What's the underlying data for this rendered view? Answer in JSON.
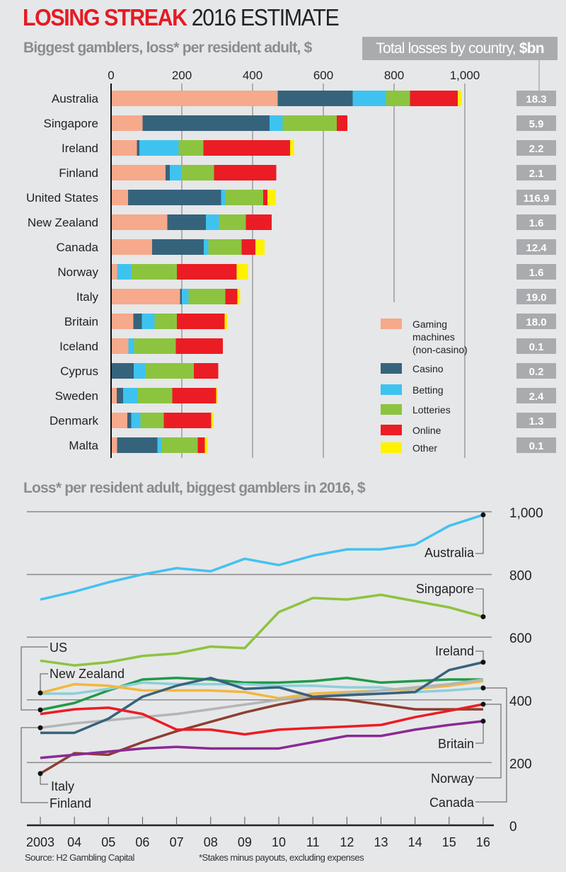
{
  "header": {
    "title_bold": "LOSING STREAK",
    "title_rest": "2016 ESTIMATE",
    "subtitle": "Biggest gamblers, loss* per resident adult, $",
    "totals_header": "Total losses by country,",
    "totals_unit": "$bn"
  },
  "footer": {
    "source": "Source: H2 Gambling Capital",
    "note": "*Stakes minus payouts, excluding expenses"
  },
  "colors": {
    "gaming": "#f6a98b",
    "casino": "#36637c",
    "betting": "#3ec3f0",
    "lotteries": "#8cc43f",
    "online": "#ec1c24",
    "other": "#fff200"
  },
  "chart_data": [
    {
      "type": "bar",
      "stacked": true,
      "orientation": "horizontal",
      "title": "Biggest gamblers, loss* per resident adult, $",
      "xlim": [
        0,
        1000
      ],
      "x_ticks": [
        "0",
        "200",
        "400",
        "600",
        "800",
        "1,000"
      ],
      "x_tick_values": [
        0,
        200,
        400,
        600,
        800,
        1000
      ],
      "legend_position": "bottom-right",
      "categories": [
        "Australia",
        "Singapore",
        "Ireland",
        "Finland",
        "United States",
        "New Zealand",
        "Canada",
        "Norway",
        "Italy",
        "Britain",
        "Iceland",
        "Cyprus",
        "Sweden",
        "Denmark",
        "Malta"
      ],
      "series": [
        {
          "key": "gaming",
          "name": "Gaming machines (non-casino)",
          "values": [
            471,
            89,
            73,
            154,
            48,
            159,
            116,
            17,
            195,
            63,
            49,
            0,
            16,
            46,
            17
          ]
        },
        {
          "key": "casino",
          "name": "Casino",
          "values": [
            212,
            359,
            7,
            12,
            263,
            109,
            146,
            0,
            5,
            24,
            0,
            64,
            18,
            11,
            114
          ]
        },
        {
          "key": "betting",
          "name": "Betting",
          "values": [
            94,
            37,
            111,
            32,
            12,
            37,
            13,
            40,
            19,
            36,
            16,
            33,
            41,
            26,
            11
          ]
        },
        {
          "key": "lotteries",
          "name": "Lotteries",
          "values": [
            68,
            153,
            70,
            93,
            107,
            76,
            94,
            129,
            104,
            63,
            118,
            137,
            98,
            66,
            103
          ]
        },
        {
          "key": "online",
          "name": "Online",
          "values": [
            135,
            30,
            245,
            176,
            12,
            73,
            39,
            169,
            34,
            135,
            133,
            69,
            124,
            134,
            20
          ]
        },
        {
          "key": "other",
          "name": "Other",
          "values": [
            11,
            0,
            11,
            0,
            24,
            0,
            26,
            32,
            8,
            8,
            0,
            0,
            4,
            7,
            9
          ]
        }
      ],
      "totals_bn": [
        "18.3",
        "5.9",
        "2.2",
        "2.1",
        "116.9",
        "1.6",
        "12.4",
        "1.6",
        "19.0",
        "18.0",
        "0.1",
        "0.2",
        "2.4",
        "1.3",
        "0.1"
      ]
    },
    {
      "type": "line",
      "title": "Loss* per resident adult, biggest gamblers in 2016, $",
      "x": [
        "2003",
        "04",
        "05",
        "06",
        "07",
        "08",
        "09",
        "10",
        "11",
        "12",
        "13",
        "14",
        "15",
        "16"
      ],
      "ylim": [
        0,
        1000
      ],
      "y_ticks": [
        "0",
        "200",
        "400",
        "600",
        "800",
        "1,000"
      ],
      "y_tick_values": [
        0,
        200,
        400,
        600,
        800,
        1000
      ],
      "grid": true,
      "series": [
        {
          "name": "Australia",
          "color": "#45c1ef",
          "values": [
            720,
            745,
            775,
            800,
            820,
            810,
            850,
            830,
            860,
            880,
            880,
            895,
            955,
            990
          ]
        },
        {
          "name": "Singapore",
          "color": "#8cc43f",
          "values": [
            525,
            510,
            520,
            540,
            548,
            570,
            565,
            680,
            725,
            720,
            735,
            715,
            695,
            665
          ]
        },
        {
          "name": "US",
          "color": "#1f9a48",
          "values": [
            368,
            390,
            430,
            465,
            470,
            465,
            455,
            455,
            460,
            470,
            455,
            460,
            465,
            465
          ]
        },
        {
          "name": "Canada",
          "color": "#8ccfd8",
          "values": [
            420,
            420,
            435,
            455,
            450,
            450,
            450,
            445,
            445,
            440,
            440,
            425,
            430,
            438
          ]
        },
        {
          "name": "New Zealand",
          "color": "#f2b73c",
          "values": [
            422,
            450,
            445,
            430,
            430,
            430,
            425,
            405,
            420,
            425,
            430,
            435,
            445,
            460
          ]
        },
        {
          "name": "Finland",
          "color": "#b3b5b8",
          "values": [
            311,
            325,
            335,
            345,
            355,
            370,
            385,
            400,
            410,
            420,
            430,
            440,
            450,
            465
          ]
        },
        {
          "name": "Ireland",
          "color": "#36637c",
          "values": [
            295,
            295,
            340,
            410,
            445,
            470,
            435,
            440,
            410,
            415,
            420,
            425,
            495,
            520
          ]
        },
        {
          "name": "Italy",
          "color": "#8b3f2f",
          "values": [
            165,
            230,
            225,
            265,
            300,
            330,
            360,
            385,
            405,
            400,
            385,
            370,
            370,
            370
          ]
        },
        {
          "name": "Norway",
          "color": "#ec1c24",
          "values": [
            355,
            370,
            375,
            355,
            305,
            305,
            290,
            305,
            310,
            315,
            320,
            345,
            365,
            386
          ]
        },
        {
          "name": "Britain",
          "color": "#8a2a95",
          "values": [
            215,
            225,
            235,
            245,
            250,
            245,
            245,
            245,
            265,
            285,
            285,
            305,
            320,
            332
          ]
        }
      ]
    }
  ]
}
